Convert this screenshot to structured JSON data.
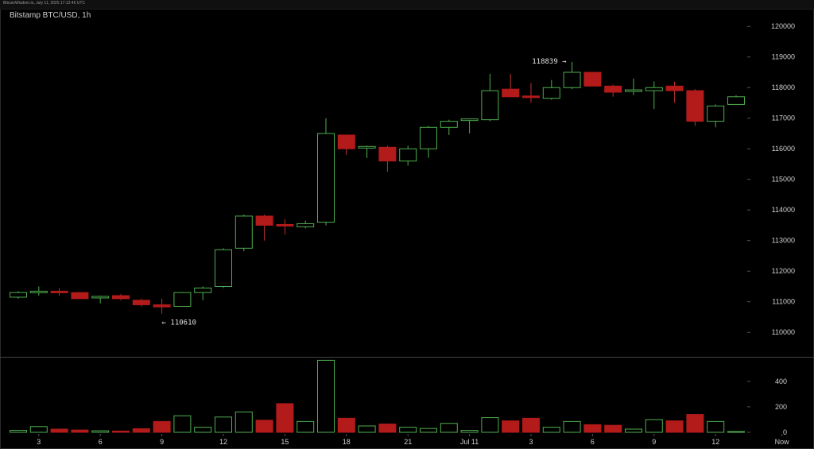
{
  "header": {
    "source_line": "BitcoinWisdom.io, July 11, 2025 17:12:46 UTC",
    "title": "Bitstamp BTC/USD, 1h"
  },
  "colors": {
    "background": "#000000",
    "up": "#4fae4f",
    "down": "#b31a1a",
    "tick_text": "#cfcfcf",
    "divider": "#444444",
    "annotation": "#e0e0e0"
  },
  "chart_data": {
    "type": "candlestick",
    "price_axis": {
      "ylim": [
        109200,
        120500
      ],
      "ticks": [
        110000,
        111000,
        112000,
        113000,
        114000,
        115000,
        116000,
        117000,
        118000,
        119000,
        120000
      ]
    },
    "volume_axis": {
      "ylim": [
        0,
        580
      ],
      "ticks": [
        0,
        200,
        400
      ]
    },
    "x_ticks": [
      {
        "label": "3",
        "index": 1
      },
      {
        "label": "6",
        "index": 4
      },
      {
        "label": "9",
        "index": 7
      },
      {
        "label": "12",
        "index": 10
      },
      {
        "label": "15",
        "index": 13
      },
      {
        "label": "18",
        "index": 16
      },
      {
        "label": "21",
        "index": 19
      },
      {
        "label": "Jul 11",
        "index": 22
      },
      {
        "label": "3",
        "index": 25
      },
      {
        "label": "6",
        "index": 28
      },
      {
        "label": "9",
        "index": 31
      },
      {
        "label": "12",
        "index": 34
      },
      {
        "label": "Now",
        "index": 37
      }
    ],
    "candles": [
      {
        "o": 111150,
        "h": 111350,
        "l": 111100,
        "c": 111300,
        "v": 15
      },
      {
        "o": 111280,
        "h": 111500,
        "l": 111200,
        "c": 111320,
        "v": 45
      },
      {
        "o": 111320,
        "h": 111450,
        "l": 111200,
        "c": 111280,
        "v": 25
      },
      {
        "o": 111300,
        "h": 111320,
        "l": 111100,
        "c": 111100,
        "v": 18
      },
      {
        "o": 111100,
        "h": 111200,
        "l": 110950,
        "c": 111150,
        "v": 12
      },
      {
        "o": 111200,
        "h": 111250,
        "l": 111050,
        "c": 111100,
        "v": 10
      },
      {
        "o": 111050,
        "h": 111100,
        "l": 110850,
        "c": 110900,
        "v": 28
      },
      {
        "o": 110900,
        "h": 111100,
        "l": 110610,
        "c": 110830,
        "v": 85
      },
      {
        "o": 110850,
        "h": 111320,
        "l": 110850,
        "c": 111300,
        "v": 130
      },
      {
        "o": 111300,
        "h": 111500,
        "l": 111050,
        "c": 111450,
        "v": 40
      },
      {
        "o": 111500,
        "h": 112750,
        "l": 111450,
        "c": 112700,
        "v": 120
      },
      {
        "o": 112750,
        "h": 113850,
        "l": 112650,
        "c": 113800,
        "v": 160
      },
      {
        "o": 113800,
        "h": 113850,
        "l": 113000,
        "c": 113500,
        "v": 95
      },
      {
        "o": 113500,
        "h": 113700,
        "l": 113200,
        "c": 113450,
        "v": 225
      },
      {
        "o": 113450,
        "h": 113650,
        "l": 113400,
        "c": 113550,
        "v": 85
      },
      {
        "o": 113600,
        "h": 117000,
        "l": 113500,
        "c": 116500,
        "v": 565
      },
      {
        "o": 116450,
        "h": 116450,
        "l": 115800,
        "c": 116000,
        "v": 110
      },
      {
        "o": 116000,
        "h": 116100,
        "l": 115700,
        "c": 116050,
        "v": 50
      },
      {
        "o": 116050,
        "h": 116100,
        "l": 115250,
        "c": 115600,
        "v": 65
      },
      {
        "o": 115600,
        "h": 116100,
        "l": 115450,
        "c": 116000,
        "v": 40
      },
      {
        "o": 116000,
        "h": 116750,
        "l": 115700,
        "c": 116700,
        "v": 30
      },
      {
        "o": 116700,
        "h": 116950,
        "l": 116450,
        "c": 116900,
        "v": 70
      },
      {
        "o": 116950,
        "h": 116970,
        "l": 116500,
        "c": 116950,
        "v": 15
      },
      {
        "o": 116950,
        "h": 118450,
        "l": 116900,
        "c": 117900,
        "v": 115
      },
      {
        "o": 117950,
        "h": 118450,
        "l": 117700,
        "c": 117700,
        "v": 90
      },
      {
        "o": 117700,
        "h": 118150,
        "l": 117500,
        "c": 117650,
        "v": 110
      },
      {
        "o": 117650,
        "h": 118250,
        "l": 117600,
        "c": 118000,
        "v": 40
      },
      {
        "o": 118000,
        "h": 118839,
        "l": 117950,
        "c": 118500,
        "v": 85
      },
      {
        "o": 118500,
        "h": 118500,
        "l": 118050,
        "c": 118050,
        "v": 60
      },
      {
        "o": 118050,
        "h": 118100,
        "l": 117700,
        "c": 117850,
        "v": 55
      },
      {
        "o": 117850,
        "h": 118300,
        "l": 117750,
        "c": 117900,
        "v": 25
      },
      {
        "o": 117900,
        "h": 118200,
        "l": 117300,
        "c": 118000,
        "v": 100
      },
      {
        "o": 118050,
        "h": 118200,
        "l": 117500,
        "c": 117900,
        "v": 90
      },
      {
        "o": 117900,
        "h": 117950,
        "l": 116750,
        "c": 116900,
        "v": 140
      },
      {
        "o": 116900,
        "h": 117450,
        "l": 116700,
        "c": 117400,
        "v": 85
      },
      {
        "o": 117450,
        "h": 117750,
        "l": 117450,
        "c": 117700,
        "v": 5
      }
    ],
    "annotations": [
      {
        "text": "118839 →",
        "candle_index": 27,
        "price": 118839
      },
      {
        "text": "← 110610",
        "candle_index": 7,
        "price": 110610
      }
    ]
  }
}
